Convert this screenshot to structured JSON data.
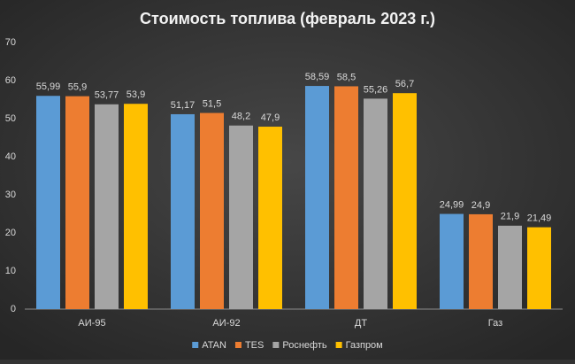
{
  "chart_data": {
    "type": "bar",
    "title": "Стоимость топлива (февраль 2023 г.)",
    "categories": [
      "АИ-95",
      "АИ-92",
      "ДТ",
      "Газ"
    ],
    "series": [
      {
        "name": "ATAN",
        "color": "#5b9bd5",
        "values": [
          55.99,
          51.17,
          58.59,
          24.99
        ],
        "value_labels": [
          "55,99",
          "51,17",
          "58,59",
          "24,99"
        ]
      },
      {
        "name": "TES",
        "color": "#ed7d31",
        "values": [
          55.9,
          51.5,
          58.5,
          24.9
        ],
        "value_labels": [
          "55,9",
          "51,5",
          "58,5",
          "24,9"
        ]
      },
      {
        "name": "Роснефть",
        "color": "#a5a5a5",
        "values": [
          53.77,
          48.2,
          55.26,
          21.9
        ],
        "value_labels": [
          "53,77",
          "48,2",
          "55,26",
          "21,9"
        ]
      },
      {
        "name": "Газпром",
        "color": "#ffc000",
        "values": [
          53.9,
          47.9,
          56.7,
          21.49
        ],
        "value_labels": [
          "53,9",
          "47,9",
          "56,7",
          "21,49"
        ]
      }
    ],
    "ylim": [
      0,
      70
    ],
    "yticks": [
      0,
      10,
      20,
      30,
      40,
      50,
      60,
      70
    ],
    "grid": false,
    "legend": "bottom"
  }
}
